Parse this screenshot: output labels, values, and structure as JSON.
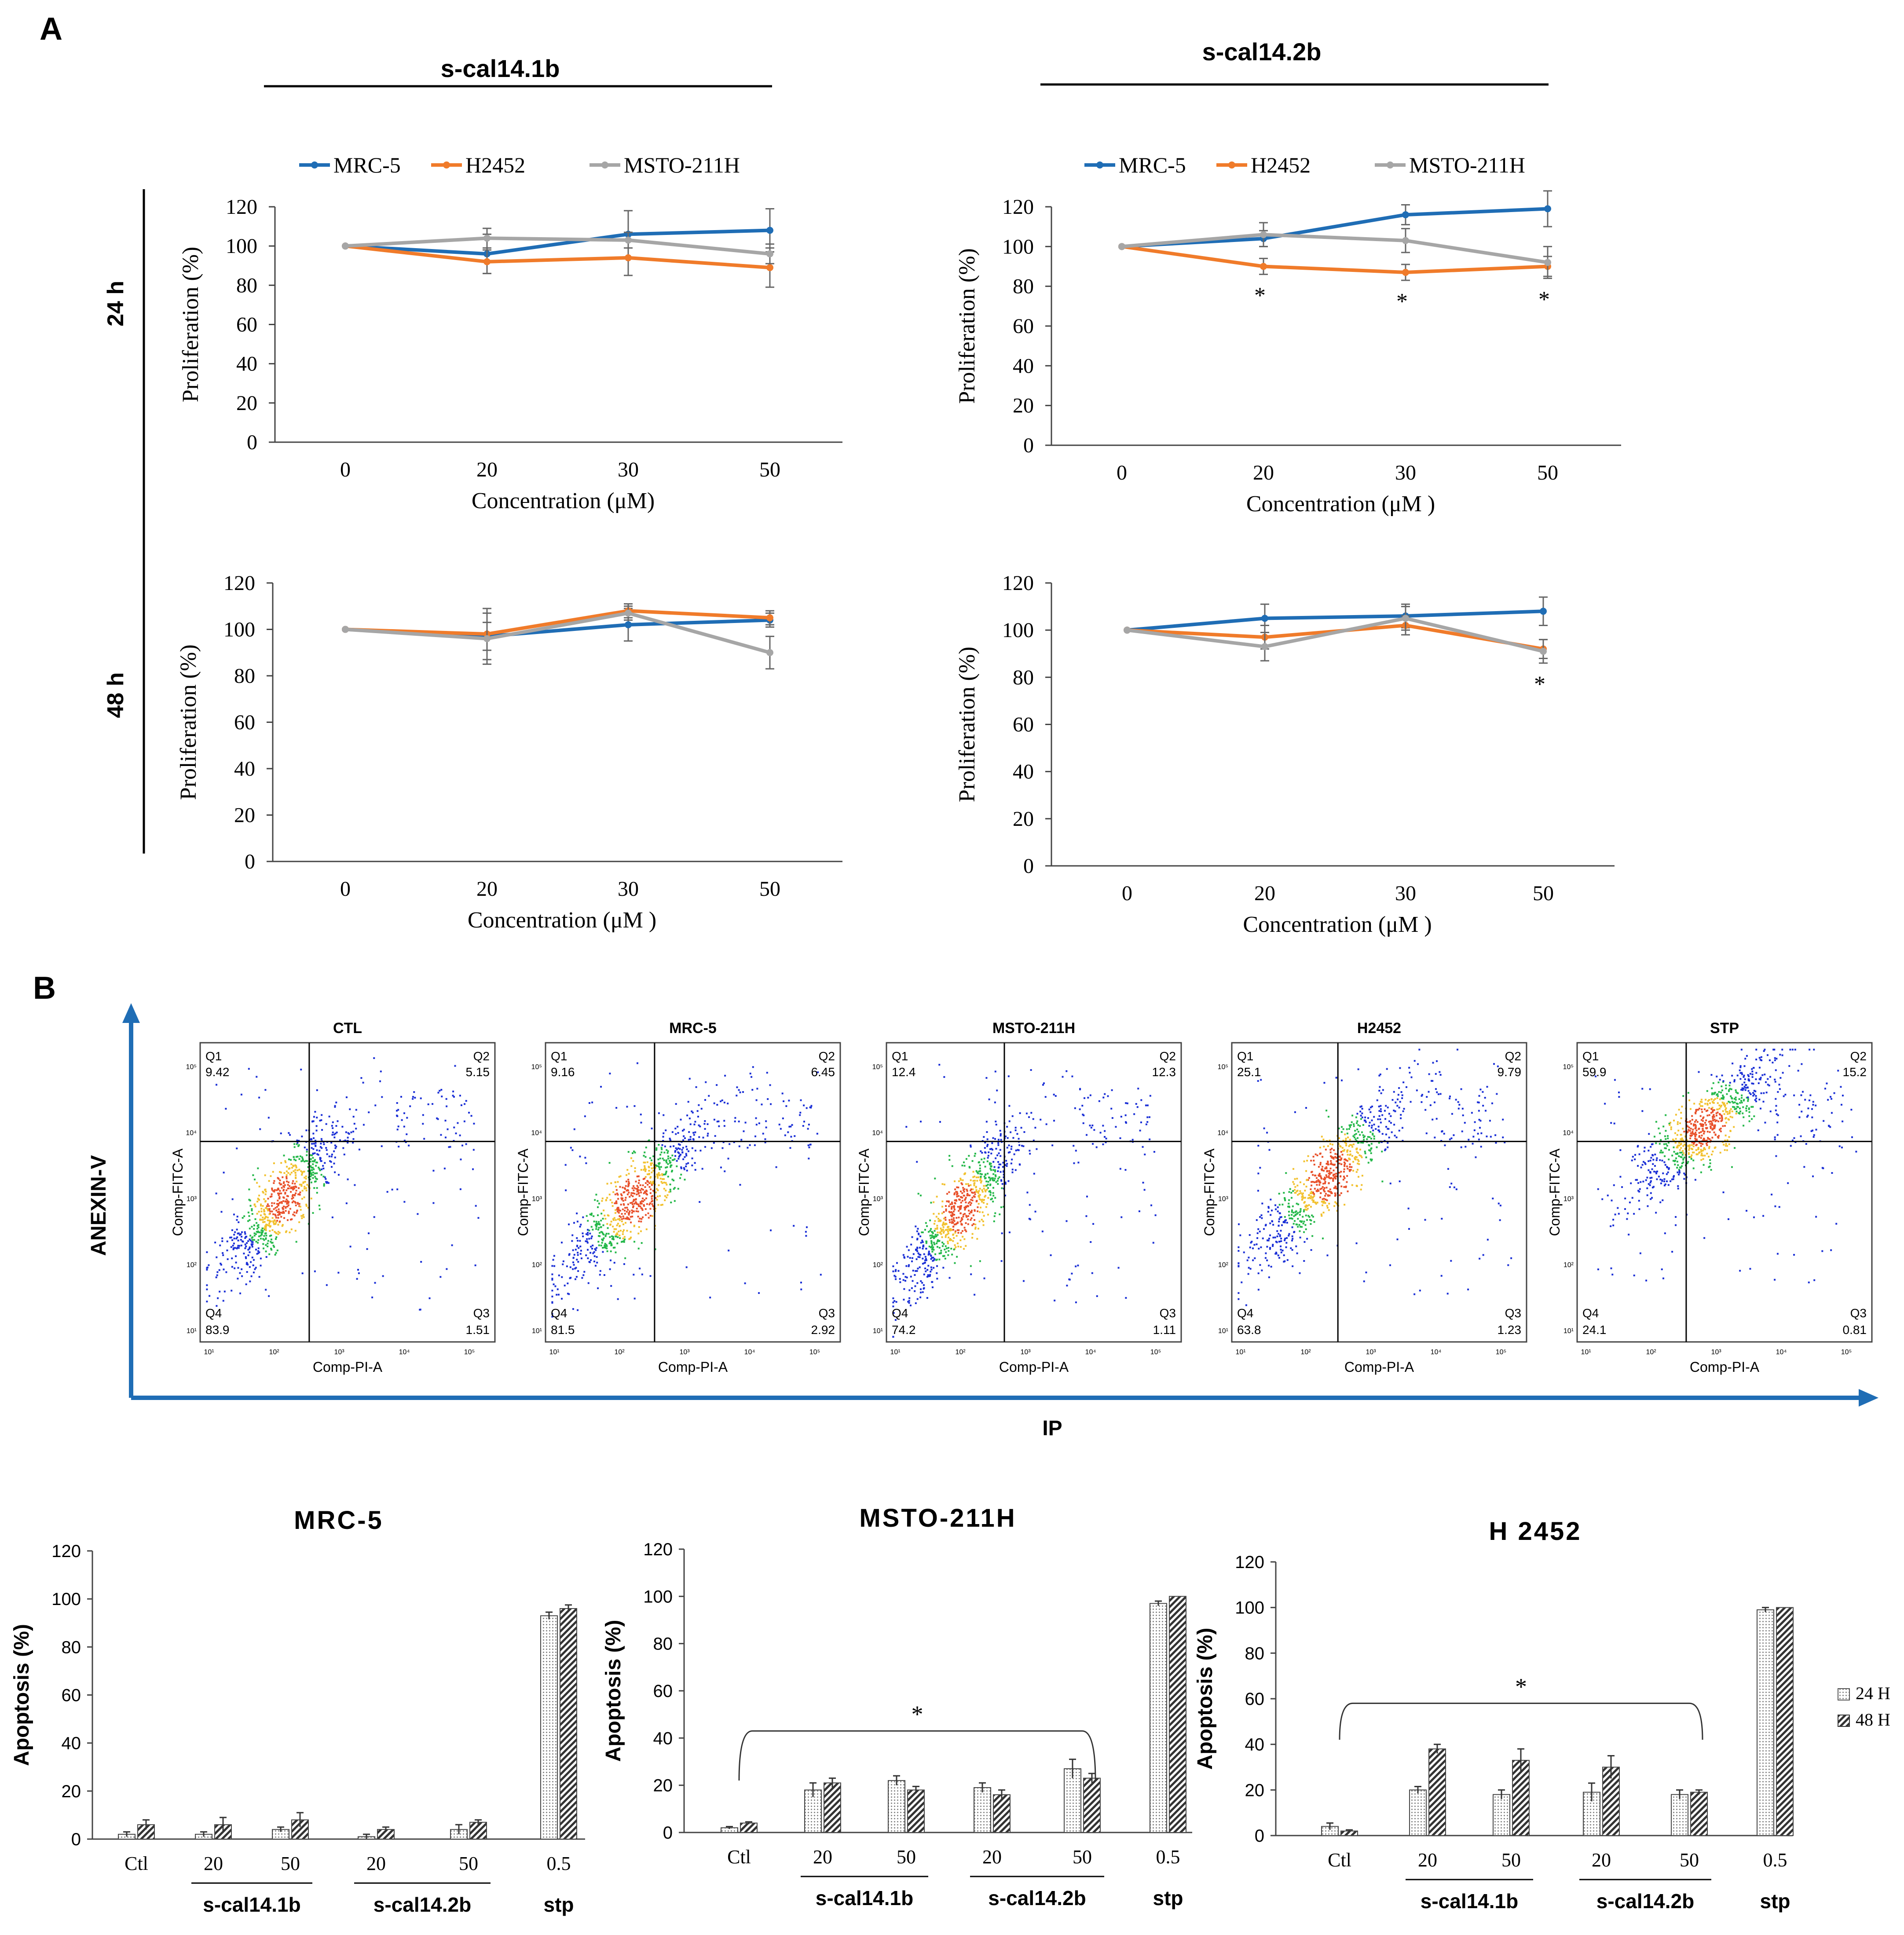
{
  "panel_a_label": "A",
  "panel_b_label": "B",
  "colors": {
    "mrc5": "#1f6db5",
    "h2452": "#f07b2a",
    "msto": "#a6a6a6",
    "arrow": "#1f6db5"
  },
  "compounds": {
    "left": "s-cal14.1b",
    "right": "s-cal14.2b"
  },
  "time_labels": {
    "t24": "24 h",
    "t48": "48 h"
  },
  "chart_data": [
    {
      "type": "line",
      "id": "a24l",
      "title": "s-cal14.1b 24 h",
      "xlabel": "Concentration (μM)",
      "ylabel": "Proliferation (%)",
      "categories": [
        "0",
        "20",
        "30",
        "50"
      ],
      "ylim": [
        0,
        120
      ],
      "yticks": [
        0,
        20,
        40,
        60,
        80,
        100,
        120
      ],
      "legend": [
        "MRC-5",
        "H2452",
        "MSTO-211H"
      ],
      "series": [
        {
          "name": "MRC-5",
          "color": "#1f6db5",
          "values": [
            100,
            96,
            106,
            108
          ],
          "err": [
            0,
            10,
            12,
            11
          ]
        },
        {
          "name": "H2452",
          "color": "#f07b2a",
          "values": [
            100,
            92,
            94,
            89
          ],
          "err": [
            0,
            6,
            9,
            10
          ]
        },
        {
          "name": "MSTO-211H",
          "color": "#a6a6a6",
          "values": [
            100,
            104,
            103,
            96
          ],
          "err": [
            0,
            5,
            4,
            5
          ]
        }
      ],
      "annotations": []
    },
    {
      "type": "line",
      "id": "a24r",
      "title": "s-cal14.2b 24 h",
      "xlabel": "Concentration (μM )",
      "ylabel": "Proliferation (%)",
      "categories": [
        "0",
        "20",
        "30",
        "50"
      ],
      "ylim": [
        0,
        120
      ],
      "yticks": [
        0,
        20,
        40,
        60,
        80,
        100,
        120
      ],
      "legend": [
        "MRC-5",
        "H2452",
        "MSTO-211H"
      ],
      "series": [
        {
          "name": "MRC-5",
          "color": "#1f6db5",
          "values": [
            100,
            104,
            116,
            119
          ],
          "err": [
            0,
            4,
            5,
            9
          ]
        },
        {
          "name": "H2452",
          "color": "#f07b2a",
          "values": [
            100,
            90,
            87,
            90
          ],
          "err": [
            0,
            4,
            4,
            5
          ]
        },
        {
          "name": "MSTO-211H",
          "color": "#a6a6a6",
          "values": [
            100,
            106,
            103,
            92
          ],
          "err": [
            0,
            6,
            6,
            8
          ]
        }
      ],
      "annotations": [
        {
          "x": "20",
          "text": "*"
        },
        {
          "x": "30",
          "text": "*"
        },
        {
          "x": "50",
          "text": "*"
        }
      ]
    },
    {
      "type": "line",
      "id": "a48l",
      "title": "s-cal14.1b 48 h",
      "xlabel": "Concentration (μM )",
      "ylabel": "Proliferation (%)",
      "categories": [
        "0",
        "20",
        "30",
        "50"
      ],
      "ylim": [
        0,
        120
      ],
      "yticks": [
        0,
        20,
        40,
        60,
        80,
        100,
        120
      ],
      "legend": [],
      "series": [
        {
          "name": "MRC-5",
          "color": "#1f6db5",
          "values": [
            100,
            97,
            102,
            104
          ],
          "err": [
            0,
            6,
            7,
            3
          ]
        },
        {
          "name": "H2452",
          "color": "#f07b2a",
          "values": [
            100,
            98,
            108,
            105
          ],
          "err": [
            0,
            11,
            3,
            3
          ]
        },
        {
          "name": "MSTO-211H",
          "color": "#a6a6a6",
          "values": [
            100,
            96,
            107,
            90
          ],
          "err": [
            0,
            11,
            3,
            7
          ]
        }
      ],
      "annotations": []
    },
    {
      "type": "line",
      "id": "a48r",
      "title": "s-cal14.2b 48 h",
      "xlabel": "Concentration (μM )",
      "ylabel": "Proliferation (%)",
      "categories": [
        "0",
        "20",
        "30",
        "50"
      ],
      "ylim": [
        0,
        120
      ],
      "yticks": [
        0,
        20,
        40,
        60,
        80,
        100,
        120
      ],
      "legend": [],
      "series": [
        {
          "name": "MRC-5",
          "color": "#1f6db5",
          "values": [
            100,
            105,
            106,
            108
          ],
          "err": [
            0,
            6,
            5,
            6
          ]
        },
        {
          "name": "H2452",
          "color": "#f07b2a",
          "values": [
            100,
            97,
            102,
            92
          ],
          "err": [
            0,
            5,
            4,
            4
          ]
        },
        {
          "name": "MSTO-211H",
          "color": "#a6a6a6",
          "values": [
            100,
            93,
            105,
            91
          ],
          "err": [
            0,
            6,
            5,
            5
          ]
        }
      ],
      "annotations": [
        {
          "x": "50",
          "text": "*"
        }
      ]
    },
    {
      "type": "bar",
      "id": "bm",
      "title": "MRC-5",
      "ylabel": "Apoptosis (%)",
      "categories": [
        "Ctl",
        "20",
        "50",
        "20",
        "50",
        "0.5"
      ],
      "groups": [
        {
          "label": "s-cal14.1b",
          "from": 1,
          "to": 2
        },
        {
          "label": "s-cal14.2b",
          "from": 3,
          "to": 4
        },
        {
          "label": "stp",
          "from": 5,
          "to": 5
        }
      ],
      "ylim": [
        0,
        120
      ],
      "yticks": [
        0,
        20,
        40,
        60,
        80,
        100,
        120
      ],
      "series": [
        {
          "name": "24 H",
          "values": [
            2,
            2,
            4,
            1,
            4,
            93
          ],
          "err": [
            1,
            1,
            1,
            1,
            2,
            1.5
          ]
        },
        {
          "name": "48 H",
          "values": [
            6,
            6,
            8,
            4,
            7,
            96
          ],
          "err": [
            2,
            3,
            3,
            1,
            1,
            1.5
          ]
        }
      ],
      "bracket": null
    },
    {
      "type": "bar",
      "id": "bs",
      "title": "MSTO-211H",
      "ylabel": "Apoptosis (%)",
      "categories": [
        "Ctl",
        "20",
        "50",
        "20",
        "50",
        "0.5"
      ],
      "groups": [
        {
          "label": "s-cal14.1b",
          "from": 1,
          "to": 2
        },
        {
          "label": "s-cal14.2b",
          "from": 3,
          "to": 4
        },
        {
          "label": "stp",
          "from": 5,
          "to": 5
        }
      ],
      "ylim": [
        0,
        120
      ],
      "yticks": [
        0,
        20,
        40,
        60,
        80,
        100,
        120
      ],
      "series": [
        {
          "name": "24 H",
          "values": [
            2,
            18,
            22,
            19,
            27,
            97
          ],
          "err": [
            0.5,
            3,
            2,
            2,
            4,
            1
          ]
        },
        {
          "name": "48 H",
          "values": [
            4,
            21,
            18,
            16,
            23,
            100
          ],
          "err": [
            0.5,
            2,
            1.5,
            2,
            2,
            0
          ]
        }
      ],
      "bracket": {
        "from": 0,
        "to": 4,
        "text": "*"
      }
    },
    {
      "type": "bar",
      "id": "bh",
      "title": "H 2452",
      "ylabel": "Apoptosis (%)",
      "categories": [
        "Ctl",
        "20",
        "50",
        "20",
        "50",
        "0.5"
      ],
      "groups": [
        {
          "label": "s-cal14.1b",
          "from": 1,
          "to": 2
        },
        {
          "label": "s-cal14.2b",
          "from": 3,
          "to": 4
        },
        {
          "label": "stp",
          "from": 5,
          "to": 5
        }
      ],
      "ylim": [
        0,
        120
      ],
      "yticks": [
        0,
        20,
        40,
        60,
        80,
        100,
        120
      ],
      "series": [
        {
          "name": "24 H",
          "values": [
            4,
            20,
            18,
            19,
            18,
            99
          ],
          "err": [
            1.5,
            1.5,
            2,
            4,
            2,
            1
          ]
        },
        {
          "name": "48 H",
          "values": [
            2,
            38,
            33,
            30,
            19,
            100
          ],
          "err": [
            0.5,
            2,
            5,
            5,
            1,
            0
          ]
        }
      ],
      "bracket": {
        "from": 0,
        "to": 4,
        "text": "*"
      }
    }
  ],
  "bar_legend": [
    "24 H",
    "48 H"
  ],
  "flow": {
    "y_axis_label": "ANEXIN-V",
    "x_axis_label": "IP",
    "plot_xlabel": "Comp-PI-A",
    "plot_ylabel": "Comp-FITC-A",
    "ticks": [
      "10¹",
      "10²",
      "10³",
      "10⁴",
      "10⁵"
    ],
    "plots": [
      {
        "title": "CTL",
        "q1": "9.42",
        "q2": "5.15",
        "q3": "1.51",
        "q4": "83.9"
      },
      {
        "title": "MRC-5",
        "q1": "9.16",
        "q2": "6.45",
        "q3": "2.92",
        "q4": "81.5"
      },
      {
        "title": "MSTO-211H",
        "q1": "12.4",
        "q2": "12.3",
        "q3": "1.11",
        "q4": "74.2"
      },
      {
        "title": "H2452",
        "q1": "25.1",
        "q2": "9.79",
        "q3": "1.23",
        "q4": "63.8"
      },
      {
        "title": "STP",
        "q1": "59.9",
        "q2": "15.2",
        "q3": "0.81",
        "q4": "24.1"
      }
    ],
    "quadrant_names": [
      "Q1",
      "Q2",
      "Q3",
      "Q4"
    ]
  }
}
